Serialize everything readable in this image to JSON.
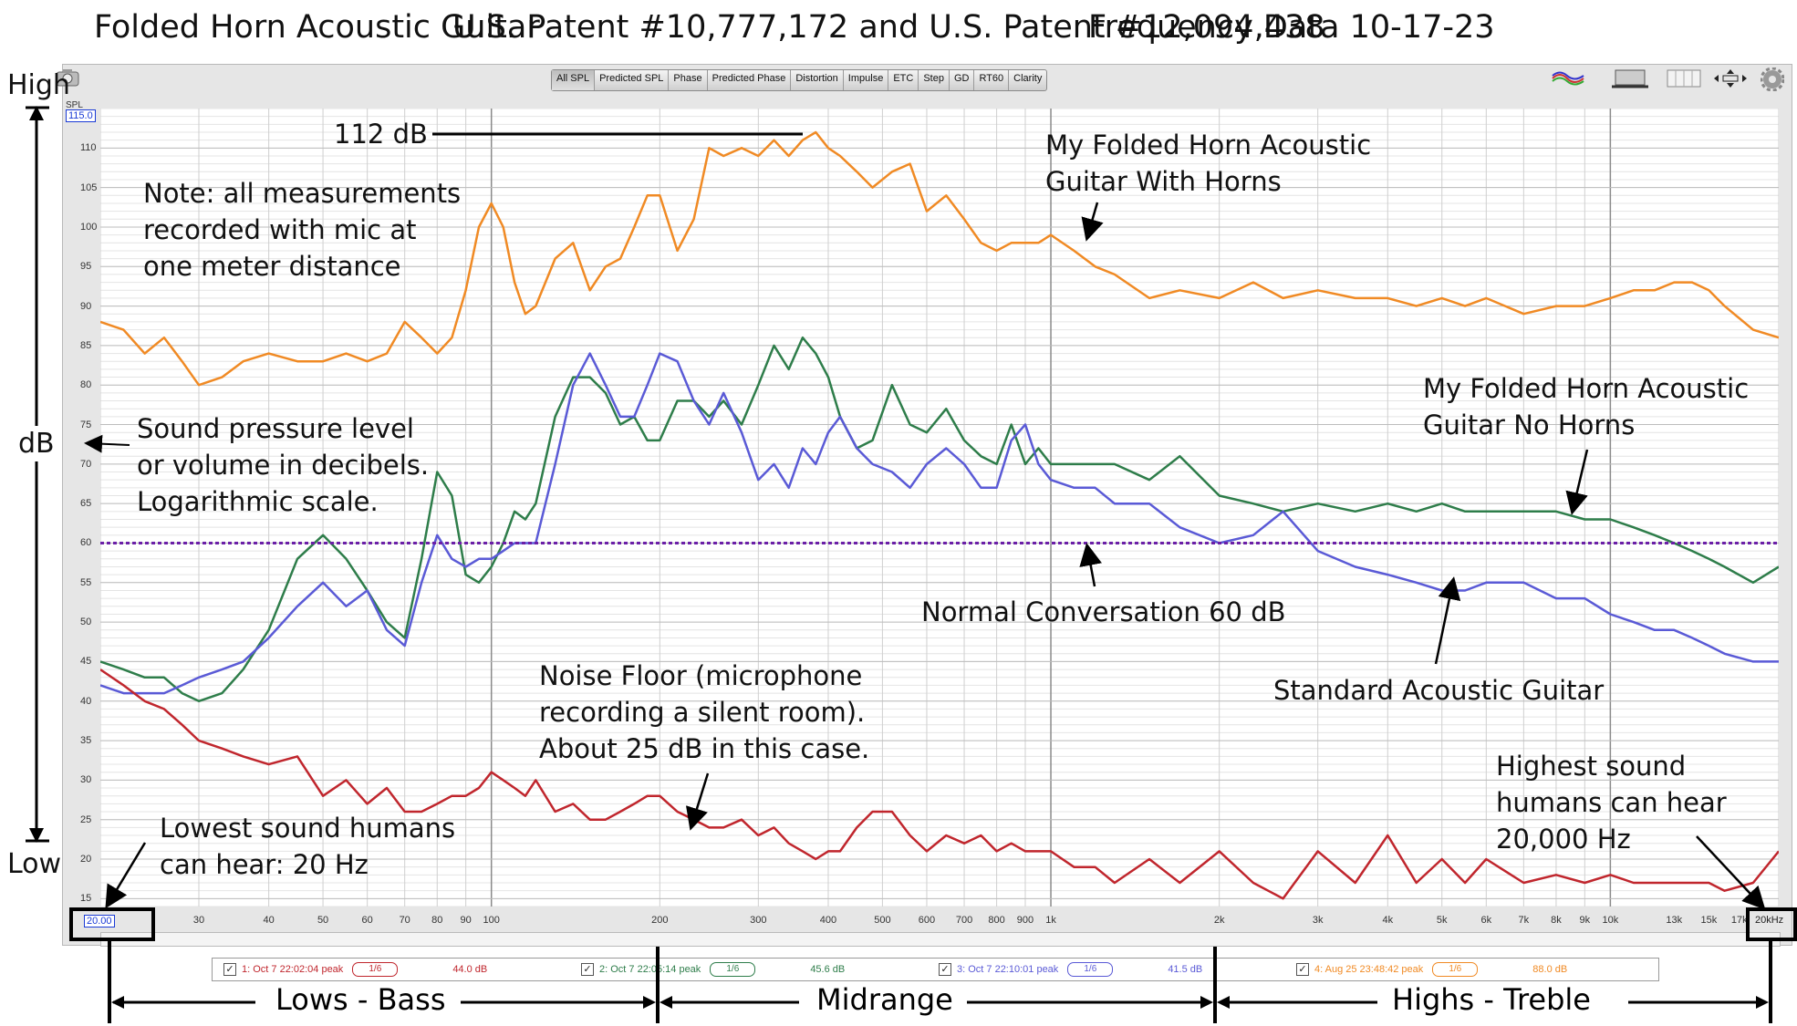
{
  "titles": {
    "left": "Folded Horn Acoustic Guitar",
    "center": "U.S. Patent #10,777,172 and U.S. Patent #12,094,438",
    "right": "Frequency Data 10-17-23"
  },
  "toolbar": {
    "tabs": [
      "All SPL",
      "Predicted SPL",
      "Phase",
      "Predicted Phase",
      "Distortion",
      "Impulse",
      "ETC",
      "Step",
      "GD",
      "RT60",
      "Clarity"
    ],
    "active_tab": "All SPL",
    "icons": [
      "camera-icon",
      "overlay-icon",
      "monitor-icon",
      "grid-icon",
      "fit-arrows-icon",
      "gear-icon"
    ]
  },
  "axis": {
    "y_unit": "SPL",
    "y_top_value": "115.0",
    "x_start_value": "20.00",
    "x_end_value": "20kHz"
  },
  "side_labels": {
    "high": "High",
    "low": "Low",
    "db": "dB"
  },
  "annotations": {
    "peak": "112 dB",
    "note": "Note: all measurements\nrecorded with mic at\none meter distance",
    "spl": "Sound pressure level\nor volume in decibels.\nLogarithmic scale.",
    "with_horns": "My Folded Horn Acoustic\nGuitar With Horns",
    "no_horns": "My Folded Horn Acoustic\nGuitar No Horns",
    "conversation": "Normal Conversation 60 dB",
    "standard": "Standard Acoustic Guitar",
    "noise": "Noise Floor (microphone\nrecording a silent room).\nAbout 25 dB in this case.",
    "lowest": "Lowest sound humans\ncan hear: 20 Hz",
    "highest": "Highest sound\nhumans can hear\n20,000 Hz"
  },
  "bands": {
    "lows": "Lows - Bass",
    "mid": "Midrange",
    "highs": "Highs - Treble"
  },
  "legend": [
    {
      "label": "1: Oct 7 22:02:04 peak",
      "smoothing": "1/6",
      "level": "44.0 dB",
      "color": "#c0262d"
    },
    {
      "label": "2: Oct 7 22:05:14 peak",
      "smoothing": "1/6",
      "level": "45.6 dB",
      "color": "#2e7d4a"
    },
    {
      "label": "3: Oct 7 22:10:01 peak",
      "smoothing": "1/6",
      "level": "41.5 dB",
      "color": "#5a5ad6"
    },
    {
      "label": "4: Aug 25 23:48:42 peak",
      "smoothing": "1/6",
      "level": "88.0 dB",
      "color": "#f08a24"
    }
  ],
  "chart_data": {
    "type": "line",
    "title": "",
    "xlabel": "",
    "ylabel": "SPL",
    "x_scale": "log",
    "xlim": [
      20,
      20000
    ],
    "ylim": [
      14,
      115
    ],
    "grid": true,
    "x_ticks": [
      {
        "v": 30,
        "label": "30"
      },
      {
        "v": 40,
        "label": "40"
      },
      {
        "v": 50,
        "label": "50"
      },
      {
        "v": 60,
        "label": "60"
      },
      {
        "v": 70,
        "label": "70"
      },
      {
        "v": 80,
        "label": "80"
      },
      {
        "v": 90,
        "label": "90"
      },
      {
        "v": 100,
        "label": "100"
      },
      {
        "v": 200,
        "label": "200"
      },
      {
        "v": 300,
        "label": "300"
      },
      {
        "v": 400,
        "label": "400"
      },
      {
        "v": 500,
        "label": "500"
      },
      {
        "v": 600,
        "label": "600"
      },
      {
        "v": 700,
        "label": "700"
      },
      {
        "v": 800,
        "label": "800"
      },
      {
        "v": 900,
        "label": "900"
      },
      {
        "v": 1000,
        "label": "1k"
      },
      {
        "v": 2000,
        "label": "2k"
      },
      {
        "v": 3000,
        "label": "3k"
      },
      {
        "v": 4000,
        "label": "4k"
      },
      {
        "v": 5000,
        "label": "5k"
      },
      {
        "v": 6000,
        "label": "6k"
      },
      {
        "v": 7000,
        "label": "7k"
      },
      {
        "v": 8000,
        "label": "8k"
      },
      {
        "v": 9000,
        "label": "9k"
      },
      {
        "v": 10000,
        "label": "10k"
      },
      {
        "v": 13000,
        "label": "13k"
      },
      {
        "v": 15000,
        "label": "15k"
      },
      {
        "v": 17000,
        "label": "17k"
      }
    ],
    "y_ticks": [
      15,
      20,
      25,
      30,
      35,
      40,
      45,
      50,
      55,
      60,
      65,
      70,
      75,
      80,
      85,
      90,
      95,
      100,
      105,
      110
    ],
    "reference_line": {
      "y": 60
    },
    "series": [
      {
        "color": "#f08a24",
        "x": [
          20,
          22,
          24,
          26,
          28,
          30,
          33,
          36,
          40,
          45,
          50,
          55,
          60,
          65,
          70,
          75,
          80,
          85,
          90,
          95,
          100,
          105,
          110,
          115,
          120,
          130,
          140,
          150,
          160,
          170,
          180,
          190,
          200,
          215,
          230,
          245,
          260,
          280,
          300,
          320,
          340,
          360,
          380,
          400,
          420,
          450,
          480,
          520,
          560,
          600,
          650,
          700,
          750,
          800,
          850,
          900,
          950,
          1000,
          1100,
          1200,
          1300,
          1500,
          1700,
          2000,
          2300,
          2600,
          3000,
          3500,
          4000,
          4500,
          5000,
          5500,
          6000,
          7000,
          8000,
          9000,
          10000,
          11000,
          12000,
          13000,
          14000,
          15000,
          16000,
          18000,
          20000
        ],
        "y": [
          88,
          87,
          84,
          86,
          83,
          80,
          81,
          83,
          84,
          83,
          83,
          84,
          83,
          84,
          88,
          86,
          84,
          86,
          92,
          100,
          103,
          100,
          93,
          89,
          90,
          96,
          98,
          92,
          95,
          96,
          100,
          104,
          104,
          97,
          101,
          110,
          109,
          110,
          109,
          111,
          109,
          111,
          112,
          110,
          109,
          107,
          105,
          107,
          108,
          102,
          104,
          101,
          98,
          97,
          98,
          98,
          98,
          99,
          97,
          95,
          94,
          91,
          92,
          91,
          93,
          91,
          92,
          91,
          91,
          90,
          91,
          90,
          91,
          89,
          90,
          90,
          91,
          92,
          92,
          93,
          93,
          92,
          90,
          87,
          86
        ]
      },
      {
        "color": "#2e7d4a",
        "x": [
          20,
          22,
          24,
          26,
          28,
          30,
          33,
          36,
          40,
          45,
          50,
          55,
          60,
          65,
          70,
          75,
          80,
          85,
          90,
          95,
          100,
          105,
          110,
          115,
          120,
          130,
          140,
          150,
          160,
          170,
          180,
          190,
          200,
          215,
          230,
          245,
          260,
          280,
          300,
          320,
          340,
          360,
          380,
          400,
          420,
          450,
          480,
          520,
          560,
          600,
          650,
          700,
          750,
          800,
          850,
          900,
          950,
          1000,
          1100,
          1200,
          1300,
          1500,
          1700,
          2000,
          2300,
          2600,
          3000,
          3500,
          4000,
          4500,
          5000,
          5500,
          6000,
          7000,
          8000,
          9000,
          10000,
          11000,
          12000,
          13000,
          14000,
          15000,
          16000,
          18000,
          20000
        ],
        "y": [
          45,
          44,
          43,
          43,
          41,
          40,
          41,
          44,
          49,
          58,
          61,
          58,
          54,
          50,
          48,
          58,
          69,
          66,
          56,
          55,
          57,
          60,
          64,
          63,
          65,
          76,
          81,
          81,
          79,
          75,
          76,
          73,
          73,
          78,
          78,
          76,
          78,
          75,
          80,
          85,
          82,
          86,
          84,
          81,
          76,
          72,
          73,
          80,
          75,
          74,
          77,
          73,
          71,
          70,
          75,
          70,
          72,
          70,
          70,
          70,
          70,
          68,
          71,
          66,
          65,
          64,
          65,
          64,
          65,
          64,
          65,
          64,
          64,
          64,
          64,
          63,
          63,
          62,
          61,
          60,
          59,
          58,
          57,
          55,
          57
        ]
      },
      {
        "color": "#5a5ad6",
        "x": [
          20,
          22,
          24,
          26,
          28,
          30,
          33,
          36,
          40,
          45,
          50,
          55,
          60,
          65,
          70,
          75,
          80,
          85,
          90,
          95,
          100,
          105,
          110,
          115,
          120,
          130,
          140,
          150,
          160,
          170,
          180,
          190,
          200,
          215,
          230,
          245,
          260,
          280,
          300,
          320,
          340,
          360,
          380,
          400,
          420,
          450,
          480,
          520,
          560,
          600,
          650,
          700,
          750,
          800,
          850,
          900,
          950,
          1000,
          1100,
          1200,
          1300,
          1500,
          1700,
          2000,
          2300,
          2600,
          3000,
          3500,
          4000,
          4500,
          5000,
          5500,
          6000,
          7000,
          8000,
          9000,
          10000,
          11000,
          12000,
          13000,
          14000,
          15000,
          16000,
          18000,
          20000
        ],
        "y": [
          42,
          41,
          41,
          41,
          42,
          43,
          44,
          45,
          48,
          52,
          55,
          52,
          54,
          49,
          47,
          55,
          61,
          58,
          57,
          58,
          58,
          59,
          60,
          60,
          60,
          70,
          80,
          84,
          80,
          76,
          76,
          80,
          84,
          83,
          78,
          75,
          79,
          74,
          68,
          70,
          67,
          72,
          70,
          74,
          76,
          72,
          70,
          69,
          67,
          70,
          72,
          70,
          67,
          67,
          73,
          75,
          70,
          68,
          67,
          67,
          65,
          65,
          62,
          60,
          61,
          64,
          59,
          57,
          56,
          55,
          54,
          54,
          55,
          55,
          53,
          53,
          51,
          50,
          49,
          49,
          48,
          47,
          46,
          45,
          45
        ]
      },
      {
        "color": "#c0262d",
        "x": [
          20,
          22,
          24,
          26,
          28,
          30,
          33,
          36,
          40,
          45,
          50,
          55,
          60,
          65,
          70,
          75,
          80,
          85,
          90,
          95,
          100,
          105,
          110,
          115,
          120,
          130,
          140,
          150,
          160,
          170,
          180,
          190,
          200,
          215,
          230,
          245,
          260,
          280,
          300,
          320,
          340,
          360,
          380,
          400,
          420,
          450,
          480,
          520,
          560,
          600,
          650,
          700,
          750,
          800,
          850,
          900,
          950,
          1000,
          1100,
          1200,
          1300,
          1500,
          1700,
          2000,
          2300,
          2600,
          3000,
          3500,
          4000,
          4500,
          5000,
          5500,
          6000,
          7000,
          8000,
          9000,
          10000,
          11000,
          12000,
          13000,
          14000,
          15000,
          16000,
          18000,
          20000
        ],
        "y": [
          44,
          42,
          40,
          39,
          37,
          35,
          34,
          33,
          32,
          33,
          28,
          30,
          27,
          29,
          26,
          26,
          27,
          28,
          28,
          29,
          31,
          30,
          29,
          28,
          30,
          26,
          27,
          25,
          25,
          26,
          27,
          28,
          28,
          26,
          25,
          24,
          24,
          25,
          23,
          24,
          22,
          21,
          20,
          21,
          21,
          24,
          26,
          26,
          23,
          21,
          23,
          22,
          23,
          21,
          22,
          21,
          21,
          21,
          19,
          19,
          17,
          20,
          17,
          21,
          17,
          15,
          21,
          17,
          23,
          17,
          20,
          17,
          20,
          17,
          18,
          17,
          18,
          17,
          17,
          17,
          17,
          17,
          16,
          17,
          21
        ]
      }
    ]
  }
}
